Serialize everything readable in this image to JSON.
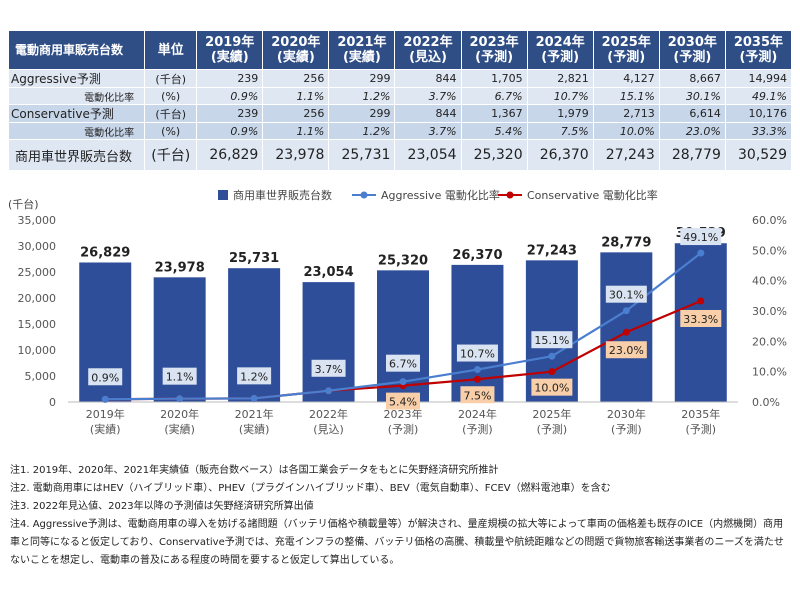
{
  "table": {
    "header": [
      "電動商用車販売台数",
      "単位",
      "2019年\n(実績)",
      "2020年\n(実績)",
      "2021年\n(実績)",
      "2022年\n(見込)",
      "2023年\n(予測)",
      "2024年\n(予測)",
      "2025年\n(予測)",
      "2030年\n(予測)",
      "2035年\n(予測)"
    ],
    "rows": [
      {
        "label": "Aggressive予測",
        "unit": "(千台)",
        "values": [
          "239",
          "256",
          "299",
          "844",
          "1,705",
          "2,821",
          "4,127",
          "8,667",
          "14,994"
        ]
      },
      {
        "label": "電動化比率",
        "unit": "(%)",
        "values": [
          "0.9%",
          "1.1%",
          "1.2%",
          "3.7%",
          "6.7%",
          "10.7%",
          "15.1%",
          "30.1%",
          "49.1%"
        ]
      },
      {
        "label": "Conservative予測",
        "unit": "(千台)",
        "values": [
          "239",
          "256",
          "299",
          "844",
          "1,367",
          "1,979",
          "2,713",
          "6,614",
          "10,176"
        ]
      },
      {
        "label": "電動化比率",
        "unit": "(%)",
        "values": [
          "0.9%",
          "1.1%",
          "1.2%",
          "3.7%",
          "5.4%",
          "7.5%",
          "10.0%",
          "23.0%",
          "33.3%"
        ]
      },
      {
        "label": "商用車世界販売台数",
        "unit": "(千台)",
        "values": [
          "26,829",
          "23,978",
          "25,731",
          "23,054",
          "25,320",
          "26,370",
          "27,243",
          "28,779",
          "30,529"
        ]
      }
    ]
  },
  "chart_data": {
    "type": "bar",
    "categories": [
      "2019年\n(実績)",
      "2020年\n(実績)",
      "2021年\n(実績)",
      "2022年\n(見込)",
      "2023年\n(予測)",
      "2024年\n(予測)",
      "2025年\n(予測)",
      "2030年\n(予測)",
      "2035年\n(予測)"
    ],
    "series": [
      {
        "name": "商用車世界販売台数",
        "kind": "bar",
        "axis": "left",
        "color": "#2f4e9a",
        "values": [
          26829,
          23978,
          25731,
          23054,
          25320,
          26370,
          27243,
          28779,
          30529
        ],
        "labels": [
          "26,829",
          "23,978",
          "25,731",
          "23,054",
          "25,320",
          "26,370",
          "27,243",
          "28,779",
          "30,529"
        ]
      },
      {
        "name": "Aggressive 電動化比率",
        "kind": "line",
        "axis": "right",
        "color": "#4a7fd0",
        "values": [
          0.9,
          1.1,
          1.2,
          3.7,
          6.7,
          10.7,
          15.1,
          30.1,
          49.1
        ],
        "labels": [
          "0.9%",
          "1.1%",
          "1.2%",
          "3.7%",
          "6.7%",
          "10.7%",
          "15.1%",
          "30.1%",
          "49.1%"
        ]
      },
      {
        "name": "Conservative 電動化比率",
        "kind": "line",
        "axis": "right",
        "color": "#c00000",
        "values": [
          0.9,
          1.1,
          1.2,
          3.7,
          5.4,
          7.5,
          10.0,
          23.0,
          33.3
        ],
        "labels": [
          "",
          "",
          "",
          "",
          "5.4%",
          "7.5%",
          "10.0%",
          "23.0%",
          "33.3%"
        ]
      }
    ],
    "y_left": {
      "label": "(千台)",
      "ylim": [
        0,
        35000
      ],
      "ticks": [
        "0",
        "5,000",
        "10,000",
        "15,000",
        "20,000",
        "25,000",
        "30,000",
        "35,000"
      ]
    },
    "y_right": {
      "ylim": [
        0,
        60
      ],
      "ticks": [
        "0.0%",
        "10.0%",
        "20.0%",
        "30.0%",
        "40.0%",
        "50.0%",
        "60.0%"
      ]
    },
    "legend": "top",
    "grid": false,
    "colors": {
      "aggressive_label_bg": "#d9e3f1",
      "conservative_label_bg": "#f8cfa9"
    }
  },
  "notes": [
    "注1. 2019年、2020年、2021年実績値（販売台数ベース）は各国工業会データをもとに矢野経済研究所推計",
    "注2. 電動商用車にはHEV（ハイブリッド車）、PHEV（プラグインハイブリッド車）、BEV（電気自動車）、FCEV（燃料電池車）を含む",
    "注3. 2022年見込値、2023年以降の予測値は矢野経済研究所算出値",
    "注4. Aggressive予測は、電動商用車の導入を妨げる諸問題（バッテリ価格や積載量等）が解決され、量産規模の拡大等によって車両の価格差も既存のICE（内燃機関）商用車と同等になると仮定しており、Conservative予測では、充電インフラの整備、バッテリ価格の高騰、積載量や航続距離などの問題で貨物旅客輸送事業者のニーズを満たせないことを想定し、電動車の普及にある程度の時間を要すると仮定して算出している。"
  ]
}
